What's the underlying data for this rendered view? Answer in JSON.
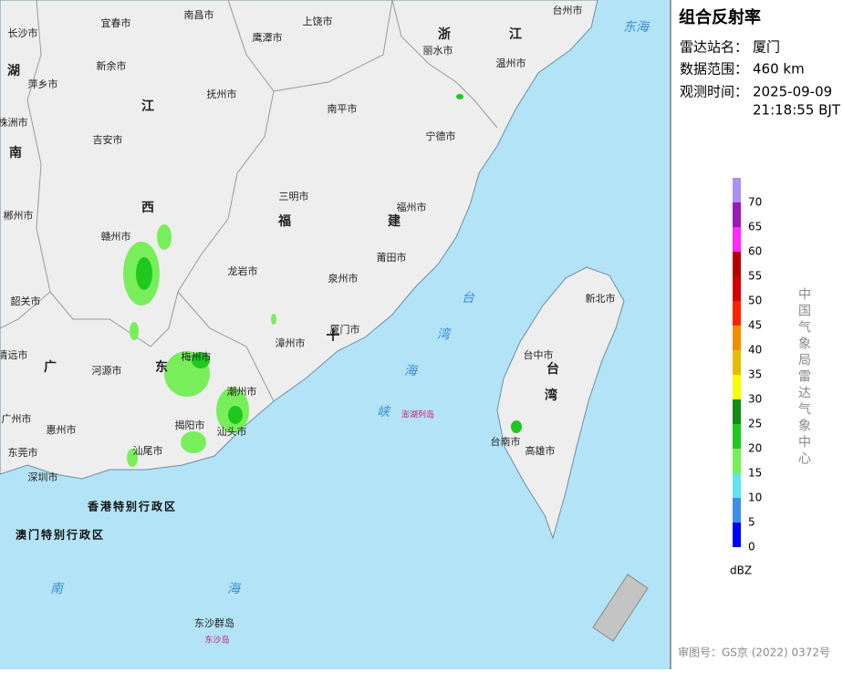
{
  "panel": {
    "title": "组合反射率",
    "station_label": "雷达站名：",
    "station": "厦门",
    "range_label": "数据范围：",
    "range": "460 km",
    "time_label": "观测时间：",
    "time_date": "2025-09-09",
    "time_clock": "21:18:55 BJT"
  },
  "legend": {
    "unit": "dBZ",
    "ticks": [
      0,
      5,
      10,
      15,
      20,
      25,
      30,
      35,
      40,
      45,
      50,
      55,
      60,
      65,
      70
    ],
    "colors": [
      "#0000f6",
      "#3d8ee8",
      "#62e3f0",
      "#78ef5a",
      "#1fc81f",
      "#128c12",
      "#fafa00",
      "#e5bc00",
      "#f28d00",
      "#ff2200",
      "#d40000",
      "#b40000",
      "#ff28ff",
      "#9a1ab4",
      "#ad90ee"
    ]
  },
  "org": "中国气象局雷达气象中心",
  "approval": "审图号：GS京 (2022) 0372号",
  "map_labels": [
    "南昌市",
    "宜春市",
    "长沙市",
    "上饶市",
    "鹰潭市",
    "丽水市",
    "温州市",
    "台州市",
    "新余市",
    "萍乡市",
    "抚州市",
    "南平市",
    "吉安市",
    "宁德市",
    "株洲市",
    "三明市",
    "福州市",
    "郴州市",
    "赣州市",
    "龙岩市",
    "泉州市",
    "莆田市",
    "韶关市",
    "厦门市",
    "漳州市",
    "清远市",
    "河源市",
    "梅州市",
    "潮州市",
    "台中市",
    "新北市",
    "揭阳市",
    "汕头市",
    "台南市",
    "汕尾市",
    "惠州市",
    "东莞市",
    "深圳市",
    "广州市",
    "高雄市",
    "湖",
    "南",
    "江",
    "西",
    "浙",
    "江",
    "福",
    "建",
    "广",
    "东",
    "台",
    "湾",
    "东海",
    "台",
    "湾",
    "海",
    "峡",
    "南",
    "海",
    "澎湖列岛",
    "香港特别行政区",
    "澳门特别行政区",
    "东沙群岛",
    "东沙岛"
  ]
}
